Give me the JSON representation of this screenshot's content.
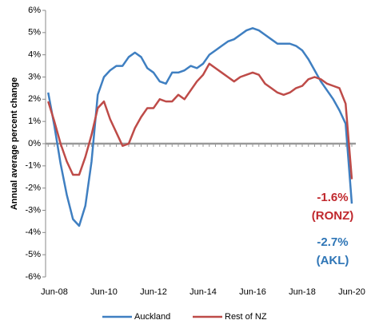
{
  "chart_data": {
    "type": "line",
    "y_label": "Annual average percent change",
    "categories": [
      null,
      "Jun-08",
      null,
      null,
      null,
      null,
      null,
      null,
      null,
      "Jun-10",
      null,
      null,
      null,
      null,
      null,
      null,
      null,
      "Jun-12",
      null,
      null,
      null,
      null,
      null,
      null,
      null,
      "Jun-14",
      null,
      null,
      null,
      null,
      null,
      null,
      null,
      "Jun-16",
      null,
      null,
      null,
      null,
      null,
      null,
      null,
      "Jun-18",
      null,
      null,
      null,
      null,
      null,
      null,
      null,
      "Jun-20"
    ],
    "series": [
      {
        "name": "Auckland",
        "color": "#3f7fc1",
        "values": [
          2.3,
          0.8,
          -0.9,
          -2.3,
          -3.4,
          -3.7,
          -2.8,
          -0.8,
          2.2,
          3.0,
          3.3,
          3.5,
          3.5,
          3.9,
          4.1,
          3.9,
          3.4,
          3.2,
          2.8,
          2.7,
          3.2,
          3.2,
          3.3,
          3.5,
          3.4,
          3.6,
          4.0,
          4.2,
          4.4,
          4.6,
          4.7,
          4.9,
          5.1,
          5.2,
          5.1,
          4.9,
          4.7,
          4.5,
          4.5,
          4.5,
          4.4,
          4.2,
          3.8,
          3.3,
          2.8,
          2.4,
          2.0,
          1.5,
          0.9,
          -2.7
        ]
      },
      {
        "name": "Rest of NZ",
        "color": "#be4b48",
        "values": [
          1.9,
          1.0,
          0.0,
          -0.8,
          -1.4,
          -1.4,
          -0.6,
          0.4,
          1.6,
          1.9,
          1.1,
          0.5,
          -0.1,
          0.0,
          0.7,
          1.2,
          1.6,
          1.6,
          2.0,
          1.9,
          1.9,
          2.2,
          2.0,
          2.4,
          2.8,
          3.1,
          3.6,
          3.4,
          3.2,
          3.0,
          2.8,
          3.0,
          3.1,
          3.2,
          3.1,
          2.7,
          2.5,
          2.3,
          2.2,
          2.3,
          2.5,
          2.6,
          2.9,
          3.0,
          2.9,
          2.7,
          2.6,
          2.5,
          1.8,
          -1.6
        ]
      }
    ],
    "annotations": [
      {
        "text": "-1.6%",
        "color": "#c0282d"
      },
      {
        "text": "(RONZ)",
        "color": "#c0282d"
      },
      {
        "text": "-2.7%",
        "color": "#2e75b6"
      },
      {
        "text": "(AKL)",
        "color": "#2e75b6"
      }
    ],
    "ylim": [
      -6,
      6
    ],
    "yticks": [
      {
        "value": -6,
        "label": "-6%"
      },
      {
        "value": -5,
        "label": "-5%"
      },
      {
        "value": -4,
        "label": "-4%"
      },
      {
        "value": -3,
        "label": "-3%"
      },
      {
        "value": -2,
        "label": "-2%"
      },
      {
        "value": -1,
        "label": "-1%"
      },
      {
        "value": 0,
        "label": "0%"
      },
      {
        "value": 1,
        "label": "1%"
      },
      {
        "value": 2,
        "label": "2%"
      },
      {
        "value": 3,
        "label": "3%"
      },
      {
        "value": 4,
        "label": "4%"
      },
      {
        "value": 5,
        "label": "5%"
      },
      {
        "value": 6,
        "label": "6%"
      }
    ],
    "legend": "bottom"
  }
}
